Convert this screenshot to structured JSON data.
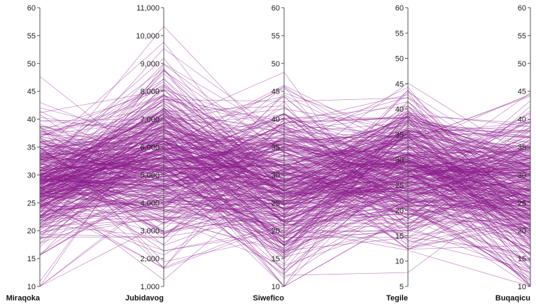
{
  "chart_data": {
    "type": "parallel-coordinates",
    "line_color": "#8b1a8b",
    "line_count": 420,
    "axes": [
      {
        "name": "Miraqoka",
        "range": [
          10,
          60
        ],
        "ticks": [
          "10",
          "15",
          "20",
          "25",
          "30",
          "35",
          "40",
          "45",
          "50",
          "55",
          "60"
        ],
        "center": 28,
        "spread": 6.0
      },
      {
        "name": "Jubidavog",
        "range": [
          1000,
          11000
        ],
        "ticks": [
          "1,000",
          "2,000",
          "3,000",
          "4,000",
          "5,000",
          "6,000",
          "7,000",
          "8,000",
          "9,000",
          "10,000",
          "11,000"
        ],
        "center": 5600,
        "spread": 1500
      },
      {
        "name": "Siwefico",
        "range": [
          10,
          60
        ],
        "ticks": [
          "10",
          "15",
          "20",
          "25",
          "30",
          "35",
          "40",
          "45",
          "50",
          "55",
          "60"
        ],
        "center": 28,
        "spread": 7.5
      },
      {
        "name": "Tegile",
        "range": [
          5,
          60
        ],
        "ticks": [
          "5",
          "10",
          "15",
          "20",
          "25",
          "30",
          "35",
          "40",
          "45",
          "50",
          "55",
          "60"
        ],
        "center": 28,
        "spread": 7.0
      },
      {
        "name": "Buqaqicu",
        "range": [
          10,
          60
        ],
        "ticks": [
          "10",
          "15",
          "20",
          "25",
          "30",
          "35",
          "40",
          "45",
          "50",
          "55",
          "60"
        ],
        "center": 27,
        "spread": 7.5
      }
    ]
  }
}
